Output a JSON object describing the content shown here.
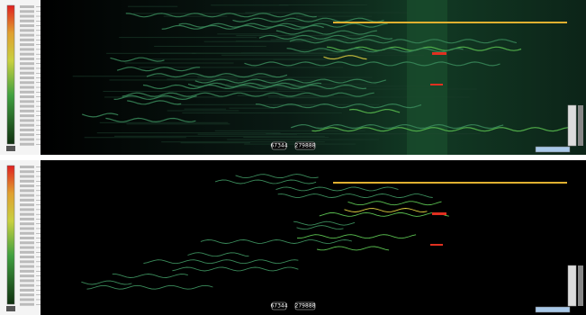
{
  "panels": [
    {
      "labels": [
        "67344",
        "279888"
      ]
    },
    {
      "labels": [
        "67344",
        "279888"
      ]
    }
  ]
}
